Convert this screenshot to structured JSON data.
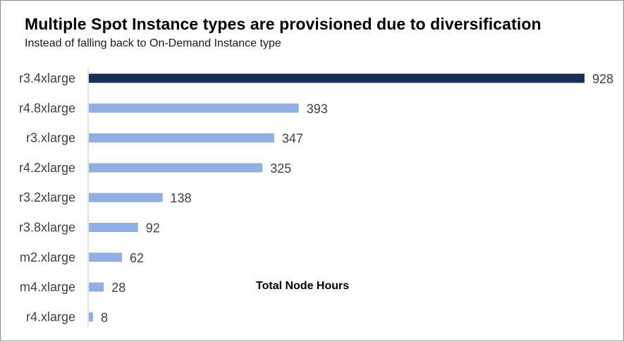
{
  "chart_data": {
    "type": "bar",
    "orientation": "horizontal",
    "title": "Multiple Spot Instance types are provisioned due to diversification",
    "subtitle": "Instead of falling back to On-Demand Instance type",
    "annotation": "Total Node Hours",
    "categories": [
      "r3.4xlarge",
      "r4.8xlarge",
      "r3.xlarge",
      "r4.2xlarge",
      "r3.2xlarge",
      "r3.8xlarge",
      "m2.xlarge",
      "m4.xlarge",
      "r4.xlarge"
    ],
    "values": [
      928,
      393,
      347,
      325,
      138,
      92,
      62,
      28,
      8
    ],
    "highlight_index": 0,
    "xlim": [
      0,
      928
    ],
    "grid": false,
    "legend": "none",
    "colors": {
      "highlight": "#1b2f55",
      "bar": "#92aee3",
      "axis": "#d9d9d9",
      "label": "#404040"
    }
  }
}
